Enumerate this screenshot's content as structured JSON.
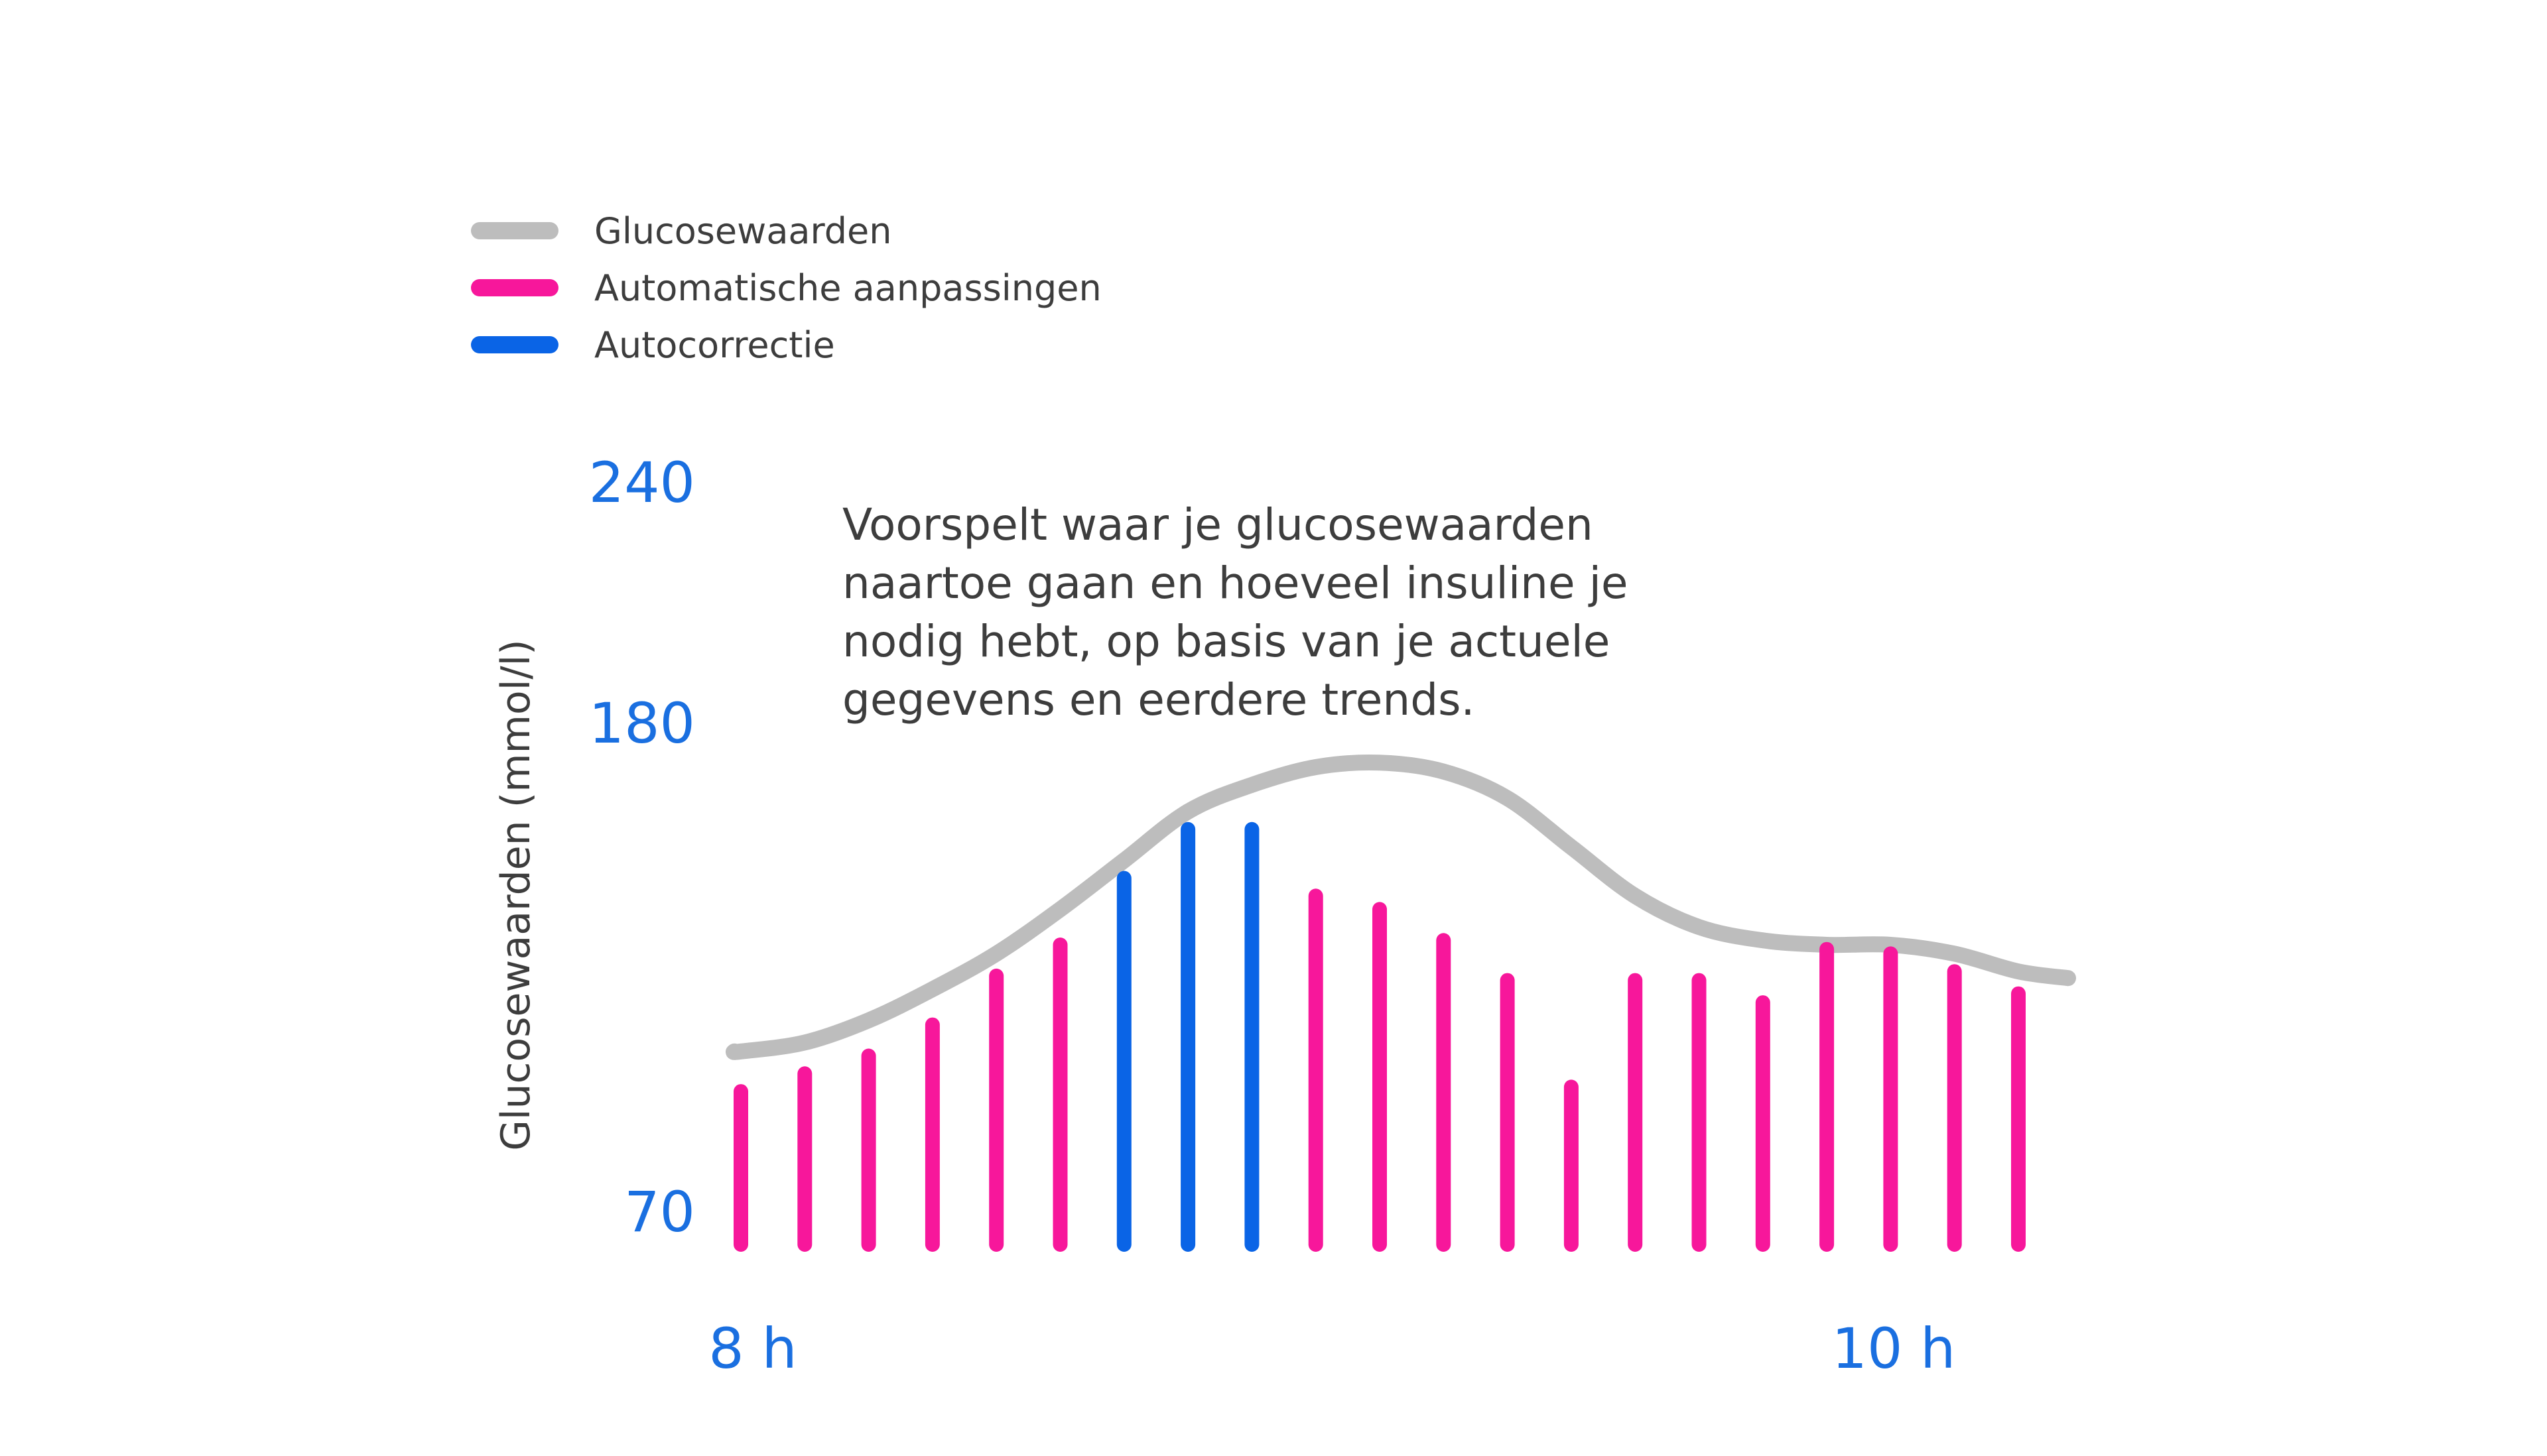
{
  "chart_data": {
    "type": "bar",
    "ylabel": "Glucosewaarden (mmol/l)",
    "y_ticks": [
      70,
      180,
      240
    ],
    "x_ticks": [
      "8 h",
      "10 h"
    ],
    "legend": [
      {
        "label": "Glucosewaarden",
        "color": "#bdbdbd"
      },
      {
        "label": "Automatische aanpassingen",
        "color": "#f7179b"
      },
      {
        "label": "Autocorrectie",
        "color": "#0a64e6"
      }
    ],
    "annotation": "Voorspelt waar je glucosewaarden naartoe gaan en hoeveel insuline je nodig hebt, op basis van je actuele gegevens en eerdere trends.",
    "bars": [
      {
        "value": 97,
        "kind": "automatic"
      },
      {
        "value": 101,
        "kind": "automatic"
      },
      {
        "value": 105,
        "kind": "automatic"
      },
      {
        "value": 112,
        "kind": "automatic"
      },
      {
        "value": 123,
        "kind": "automatic"
      },
      {
        "value": 130,
        "kind": "automatic"
      },
      {
        "value": 145,
        "kind": "autocorrection"
      },
      {
        "value": 156,
        "kind": "autocorrection"
      },
      {
        "value": 156,
        "kind": "autocorrection"
      },
      {
        "value": 141,
        "kind": "automatic"
      },
      {
        "value": 138,
        "kind": "automatic"
      },
      {
        "value": 131,
        "kind": "automatic"
      },
      {
        "value": 122,
        "kind": "automatic"
      },
      {
        "value": 98,
        "kind": "automatic"
      },
      {
        "value": 122,
        "kind": "automatic"
      },
      {
        "value": 122,
        "kind": "automatic"
      },
      {
        "value": 117,
        "kind": "automatic"
      },
      {
        "value": 129,
        "kind": "automatic"
      },
      {
        "value": 128,
        "kind": "automatic"
      },
      {
        "value": 124,
        "kind": "automatic"
      },
      {
        "value": 119,
        "kind": "automatic"
      }
    ],
    "glucose_curve": [
      106,
      108,
      113,
      120,
      128,
      138,
      149,
      160,
      166,
      170,
      171,
      169,
      163,
      152,
      141,
      134,
      131,
      130,
      130,
      128,
      124
    ]
  }
}
